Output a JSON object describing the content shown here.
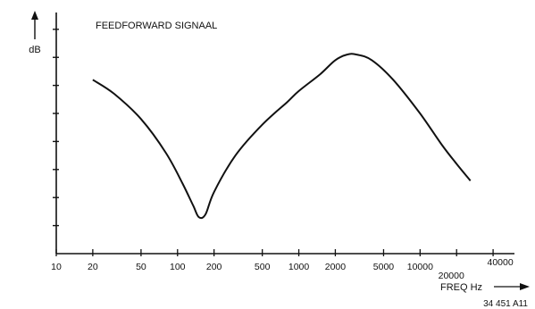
{
  "chart_data": {
    "type": "line",
    "title": "FEEDFORWARD SIGNAAL",
    "ylabel": "dB",
    "xlabel": "FREQ Hz",
    "figure_id": "34 451 A11",
    "x_scale": "log",
    "xlim": [
      10,
      60000
    ],
    "ylim": [
      0,
      8.6
    ],
    "grid": false,
    "x_ticks": [
      {
        "value": 10,
        "label": "10"
      },
      {
        "value": 20,
        "label": "20"
      },
      {
        "value": 50,
        "label": "50"
      },
      {
        "value": 100,
        "label": "100"
      },
      {
        "value": 200,
        "label": "200"
      },
      {
        "value": 500,
        "label": "500"
      },
      {
        "value": 1000,
        "label": "1000"
      },
      {
        "value": 2000,
        "label": "2000"
      },
      {
        "value": 5000,
        "label": "5000"
      },
      {
        "value": 10000,
        "label": "10000"
      },
      {
        "value": 20000,
        "label": "20000"
      },
      {
        "value": 40000,
        "label": "40000"
      }
    ],
    "y_ticks": [
      1,
      2,
      3,
      4,
      5,
      6,
      7,
      8
    ],
    "series": [
      {
        "x": [
          20,
          30,
          50,
          80,
          110,
          135,
          150,
          170,
          200,
          300,
          500,
          800,
          1000,
          1500,
          2000,
          2500,
          3000,
          4000,
          6000,
          10000,
          15000,
          20000,
          26000
        ],
        "y": [
          6.2,
          5.7,
          4.8,
          3.6,
          2.5,
          1.7,
          1.3,
          1.4,
          2.2,
          3.5,
          4.6,
          5.4,
          5.8,
          6.4,
          6.9,
          7.1,
          7.1,
          6.9,
          6.2,
          5.0,
          3.9,
          3.2,
          2.6
        ]
      }
    ]
  }
}
